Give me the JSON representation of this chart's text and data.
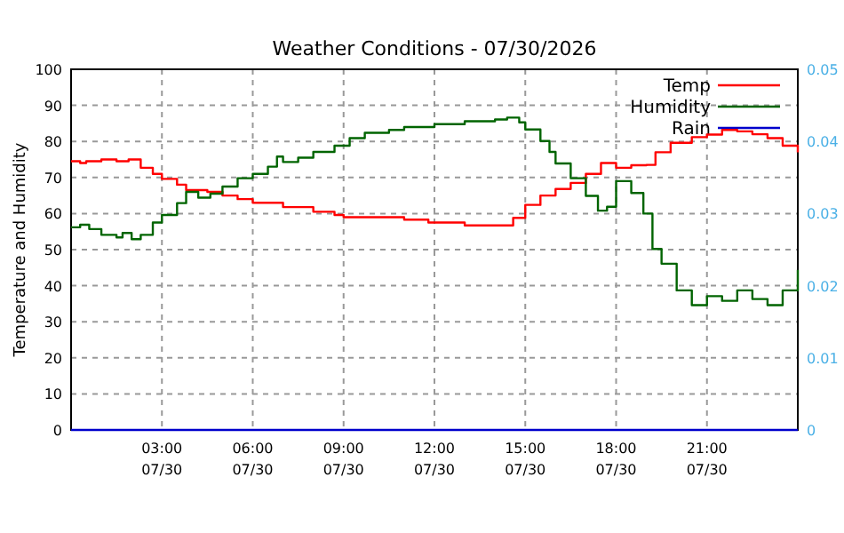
{
  "chart_data": {
    "type": "step",
    "title": "Weather Conditions - 07/30/2026",
    "ylabel": "Temperature and Humidity",
    "xlim": [
      "2026-07-30T00:00",
      "2026-07-31T00:00"
    ],
    "xticks": [
      {
        "value": "2026-07-30T03:00",
        "label": "03:00\n07/30"
      },
      {
        "value": "2026-07-30T06:00",
        "label": "06:00\n07/30"
      },
      {
        "value": "2026-07-30T09:00",
        "label": "09:00\n07/30"
      },
      {
        "value": "2026-07-30T12:00",
        "label": "12:00\n07/30"
      },
      {
        "value": "2026-07-30T15:00",
        "label": "15:00\n07/30"
      },
      {
        "value": "2026-07-30T18:00",
        "label": "18:00\n07/30"
      },
      {
        "value": "2026-07-30T21:00",
        "label": "21:00\n07/30"
      }
    ],
    "ylim": [
      0,
      100
    ],
    "yticks": [
      0,
      10,
      20,
      30,
      40,
      50,
      60,
      70,
      80,
      90,
      100
    ],
    "y2lim": [
      0,
      0.05
    ],
    "y2ticks": [
      0,
      0.01,
      0.02,
      0.03,
      0.04,
      0.05
    ],
    "grid": true,
    "legend": "top right",
    "line_style": "solid",
    "series": [
      {
        "name": "Temp",
        "color": "#ff0000",
        "x": [
          "2026-07-30T00:00",
          "2026-07-30T00:18",
          "2026-07-30T00:30",
          "2026-07-30T01:00",
          "2026-07-30T01:30",
          "2026-07-30T01:54",
          "2026-07-30T02:18",
          "2026-07-30T02:42",
          "2026-07-30T03:00",
          "2026-07-30T03:30",
          "2026-07-30T03:48",
          "2026-07-30T04:30",
          "2026-07-30T05:00",
          "2026-07-30T05:30",
          "2026-07-30T06:00",
          "2026-07-30T07:00",
          "2026-07-30T08:00",
          "2026-07-30T08:42",
          "2026-07-30T09:00",
          "2026-07-30T10:30",
          "2026-07-30T11:00",
          "2026-07-30T11:48",
          "2026-07-30T12:00",
          "2026-07-30T13:00",
          "2026-07-30T14:12",
          "2026-07-30T14:36",
          "2026-07-30T15:00",
          "2026-07-30T15:30",
          "2026-07-30T16:00",
          "2026-07-30T16:30",
          "2026-07-30T17:00",
          "2026-07-30T17:30",
          "2026-07-30T18:00",
          "2026-07-30T18:30",
          "2026-07-30T19:00",
          "2026-07-30T19:18",
          "2026-07-30T19:48",
          "2026-07-30T20:30",
          "2026-07-30T21:00",
          "2026-07-30T21:30",
          "2026-07-30T22:00",
          "2026-07-30T22:30",
          "2026-07-30T23:00",
          "2026-07-30T23:30",
          "2026-07-31T00:00"
        ],
        "values": [
          74.5,
          74,
          74.5,
          75,
          74.5,
          75,
          72.7,
          71,
          69.6,
          68,
          66.5,
          66,
          65,
          64,
          63,
          61.8,
          60.5,
          59.6,
          59,
          59,
          58.3,
          57.5,
          57.5,
          56.7,
          56.7,
          58.8,
          62.4,
          65,
          66.8,
          68.5,
          71,
          74,
          72.7,
          73.4,
          73.5,
          77,
          79.6,
          81.2,
          81.9,
          83.2,
          82.8,
          82,
          80.9,
          78.8,
          77
        ]
      },
      {
        "name": "Humidity",
        "color": "#006400",
        "x": [
          "2026-07-30T00:00",
          "2026-07-30T00:18",
          "2026-07-30T00:36",
          "2026-07-30T01:00",
          "2026-07-30T01:30",
          "2026-07-30T01:42",
          "2026-07-30T02:00",
          "2026-07-30T02:18",
          "2026-07-30T02:42",
          "2026-07-30T03:00",
          "2026-07-30T03:30",
          "2026-07-30T03:48",
          "2026-07-30T04:12",
          "2026-07-30T04:36",
          "2026-07-30T05:00",
          "2026-07-30T05:30",
          "2026-07-30T06:00",
          "2026-07-30T06:30",
          "2026-07-30T06:48",
          "2026-07-30T07:00",
          "2026-07-30T07:30",
          "2026-07-30T08:00",
          "2026-07-30T08:42",
          "2026-07-30T09:12",
          "2026-07-30T09:42",
          "2026-07-30T10:30",
          "2026-07-30T11:00",
          "2026-07-30T12:00",
          "2026-07-30T13:00",
          "2026-07-30T14:00",
          "2026-07-30T14:24",
          "2026-07-30T14:48",
          "2026-07-30T15:00",
          "2026-07-30T15:30",
          "2026-07-30T15:48",
          "2026-07-30T16:00",
          "2026-07-30T16:30",
          "2026-07-30T17:00",
          "2026-07-30T17:24",
          "2026-07-30T17:42",
          "2026-07-30T18:00",
          "2026-07-30T18:30",
          "2026-07-30T18:54",
          "2026-07-30T19:12",
          "2026-07-30T19:30",
          "2026-07-30T20:00",
          "2026-07-30T20:30",
          "2026-07-30T21:00",
          "2026-07-30T21:30",
          "2026-07-30T22:00",
          "2026-07-30T22:30",
          "2026-07-30T23:00",
          "2026-07-30T23:30",
          "2026-07-31T00:00"
        ],
        "values": [
          56.2,
          56.9,
          55.7,
          54.1,
          53.4,
          54.6,
          52.9,
          54.1,
          57.5,
          59.6,
          62.9,
          66,
          64.4,
          65.5,
          67.5,
          69.8,
          71,
          73,
          75.8,
          74.3,
          75.5,
          77.1,
          78.8,
          80.9,
          82.4,
          83.2,
          84,
          84.8,
          85.6,
          86.1,
          86.6,
          85.3,
          83.3,
          80.1,
          77.1,
          73.9,
          69.8,
          64.9,
          60.8,
          61.9,
          69,
          65.7,
          60,
          50.2,
          46.1,
          38.7,
          34.6,
          37.1,
          35.8,
          38.7,
          36.3,
          34.6,
          38.7,
          44.4
        ]
      },
      {
        "name": "Rain",
        "color": "#0000cc",
        "x": [
          "2026-07-30T00:00",
          "2026-07-31T00:00"
        ],
        "values": [
          0,
          0
        ]
      }
    ]
  }
}
